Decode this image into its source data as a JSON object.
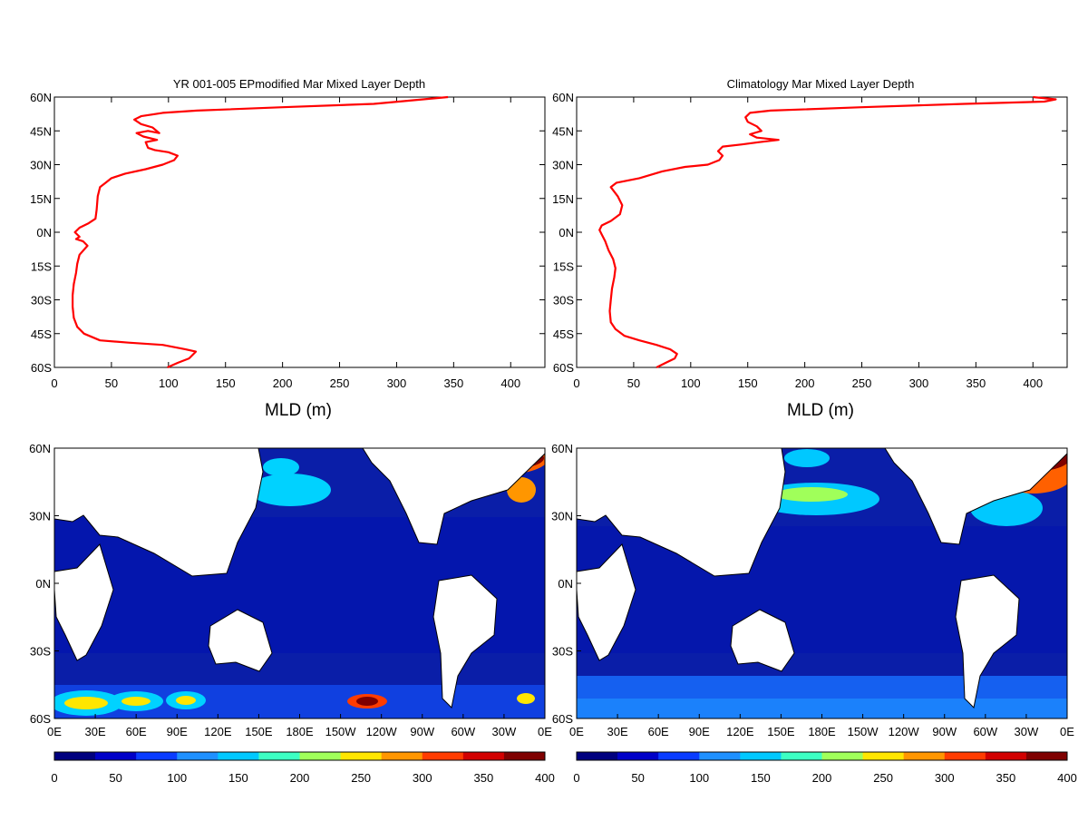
{
  "profiles": [
    {
      "title": "YR 001-005 EPmodified Mar Mixed Layer Depth",
      "xlabel": "MLD (m)",
      "xlim": [
        0,
        430
      ],
      "ylim": [
        -60,
        60
      ],
      "x_ticks": [
        0,
        50,
        100,
        150,
        200,
        250,
        300,
        350,
        400
      ],
      "y_ticks": [
        -60,
        -45,
        -30,
        -15,
        0,
        15,
        30,
        45,
        60
      ],
      "y_tick_labels": [
        "60S",
        "45S",
        "30S",
        "15S",
        "0N",
        "15N",
        "30N",
        "45N",
        "60N"
      ],
      "line_color": "#ff0000"
    },
    {
      "title": "Climatology Mar Mixed Layer Depth",
      "xlabel": "MLD (m)",
      "xlim": [
        0,
        430
      ],
      "ylim": [
        -60,
        60
      ],
      "x_ticks": [
        0,
        50,
        100,
        150,
        200,
        250,
        300,
        350,
        400
      ],
      "y_ticks": [
        -60,
        -45,
        -30,
        -15,
        0,
        15,
        30,
        45,
        60
      ],
      "y_tick_labels": [
        "60S",
        "45S",
        "30S",
        "15S",
        "0N",
        "15N",
        "30N",
        "45N",
        "60N"
      ],
      "line_color": "#ff0000"
    }
  ],
  "maps": [
    {
      "lon_tick_labels": [
        "0E",
        "30E",
        "60E",
        "90E",
        "120E",
        "150E",
        "180E",
        "150W",
        "120W",
        "90W",
        "60W",
        "30W",
        "0E"
      ],
      "lat_tick_labels": [
        "60S",
        "30S",
        "0N",
        "30N",
        "60N"
      ],
      "colorbar_ticks": [
        0,
        50,
        100,
        150,
        200,
        250,
        300,
        350,
        400
      ]
    },
    {
      "lon_tick_labels": [
        "0E",
        "30E",
        "60E",
        "90E",
        "120E",
        "150E",
        "180E",
        "150W",
        "120W",
        "90W",
        "60W",
        "30W",
        "0E"
      ],
      "lat_tick_labels": [
        "60S",
        "30S",
        "0N",
        "30N",
        "60N"
      ],
      "colorbar_ticks": [
        0,
        50,
        100,
        150,
        200,
        250,
        300,
        350,
        400
      ]
    }
  ],
  "colormap": [
    "#00007f",
    "#0000c8",
    "#0a3cff",
    "#1e90ff",
    "#00c8ff",
    "#3cffc3",
    "#a0ff5a",
    "#ffe600",
    "#ff9600",
    "#ff3c00",
    "#d20000",
    "#7f0000"
  ],
  "chart_data": [
    {
      "type": "line",
      "title": "YR 001-005 EPmodified Mar Mixed Layer Depth",
      "xlabel": "MLD (m)",
      "ylabel": "",
      "xlim": [
        0,
        430
      ],
      "ylim": [
        -60,
        60
      ],
      "series": [
        {
          "points": [
            [
              99,
              -60
            ],
            [
              108,
              -58
            ],
            [
              118,
              -56
            ],
            [
              124,
              -53
            ],
            [
              115,
              -52
            ],
            [
              95,
              -50
            ],
            [
              65,
              -49
            ],
            [
              40,
              -48
            ],
            [
              26,
              -45
            ],
            [
              20,
              -42
            ],
            [
              17,
              -38
            ],
            [
              16,
              -33
            ],
            [
              16,
              -28
            ],
            [
              17,
              -23
            ],
            [
              19,
              -18
            ],
            [
              20,
              -14
            ],
            [
              22,
              -10
            ],
            [
              29,
              -6
            ],
            [
              25,
              -4
            ],
            [
              19,
              -3
            ],
            [
              22,
              -2
            ],
            [
              18,
              0
            ],
            [
              22,
              2
            ],
            [
              30,
              4
            ],
            [
              36,
              6
            ],
            [
              37,
              10
            ],
            [
              38,
              16
            ],
            [
              40,
              20
            ],
            [
              45,
              22
            ],
            [
              50,
              24
            ],
            [
              62,
              26
            ],
            [
              80,
              28
            ],
            [
              95,
              30
            ],
            [
              105,
              32
            ],
            [
              108,
              34
            ],
            [
              100,
              35.5
            ],
            [
              88,
              36.5
            ],
            [
              82,
              37.5
            ],
            [
              80,
              40
            ],
            [
              90,
              41
            ],
            [
              78,
              42.5
            ],
            [
              72,
              44
            ],
            [
              82,
              45
            ],
            [
              92,
              44
            ],
            [
              86,
              46.5
            ],
            [
              76,
              48
            ],
            [
              70,
              50
            ],
            [
              76,
              51.5
            ],
            [
              95,
              53
            ],
            [
              125,
              54
            ],
            [
              200,
              55.5
            ],
            [
              280,
              57
            ],
            [
              345,
              60
            ]
          ]
        }
      ]
    },
    {
      "type": "line",
      "title": "Climatology Mar Mixed Layer Depth",
      "xlabel": "MLD (m)",
      "ylabel": "",
      "xlim": [
        0,
        430
      ],
      "ylim": [
        -60,
        60
      ],
      "series": [
        {
          "points": [
            [
              70,
              -60
            ],
            [
              78,
              -58
            ],
            [
              86,
              -56
            ],
            [
              88,
              -54
            ],
            [
              82,
              -52
            ],
            [
              70,
              -50
            ],
            [
              55,
              -48
            ],
            [
              42,
              -46
            ],
            [
              34,
              -43
            ],
            [
              30,
              -40
            ],
            [
              29,
              -35
            ],
            [
              30,
              -30
            ],
            [
              31,
              -25
            ],
            [
              33,
              -20
            ],
            [
              34,
              -16
            ],
            [
              32,
              -12
            ],
            [
              28,
              -8
            ],
            [
              25,
              -4
            ],
            [
              22,
              -1
            ],
            [
              20,
              1
            ],
            [
              22,
              3
            ],
            [
              30,
              5
            ],
            [
              38,
              8
            ],
            [
              40,
              12
            ],
            [
              36,
              16
            ],
            [
              30,
              20
            ],
            [
              35,
              22
            ],
            [
              55,
              24
            ],
            [
              75,
              27
            ],
            [
              95,
              29
            ],
            [
              115,
              30
            ],
            [
              125,
              32
            ],
            [
              128,
              34
            ],
            [
              124,
              36
            ],
            [
              128,
              38
            ],
            [
              145,
              39
            ],
            [
              160,
              40
            ],
            [
              177,
              41
            ],
            [
              158,
              42
            ],
            [
              152,
              43.5
            ],
            [
              162,
              45
            ],
            [
              158,
              47
            ],
            [
              150,
              49
            ],
            [
              148,
              51
            ],
            [
              152,
              53
            ],
            [
              170,
              54
            ],
            [
              250,
              55.5
            ],
            [
              340,
              57
            ],
            [
              410,
              58
            ],
            [
              420,
              59
            ],
            [
              400,
              60
            ]
          ]
        }
      ]
    }
  ]
}
